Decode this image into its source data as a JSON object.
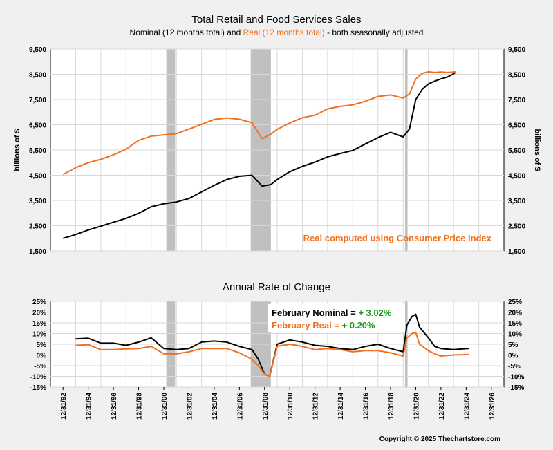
{
  "chart_data": [
    {
      "type": "line",
      "title": "Total Retail and Food Services Sales",
      "subtitle": {
        "part1": "Nominal (12 months total) and ",
        "part2": "Real (12 months total)",
        "part3": " - both seasonally adjusted"
      },
      "ylabel_left": "billions of $",
      "ylabel_right": "billions of $",
      "ylim": [
        1500,
        9500
      ],
      "yticks": [
        "9,500",
        "8,500",
        "7,500",
        "6,500",
        "5,500",
        "4,500",
        "3,500",
        "2,500",
        "1,500"
      ],
      "xlim": [
        1992,
        2028
      ],
      "annotation": "Real computed using Consumer Price Index",
      "recessions": [
        [
          2001.2,
          2001.9
        ],
        [
          2007.9,
          2009.5
        ],
        [
          2020.15,
          2020.35
        ]
      ],
      "series": [
        {
          "name": "Nominal",
          "color": "#000000",
          "x": [
            1993,
            1994,
            1995,
            1996,
            1997,
            1998,
            1999,
            2000,
            2001,
            2002,
            2003,
            2004,
            2005,
            2006,
            2007,
            2008,
            2008.8,
            2009.5,
            2010,
            2011,
            2012,
            2013,
            2014,
            2015,
            2016,
            2017,
            2018,
            2019,
            2020,
            2020.5,
            2021,
            2021.5,
            2022,
            2022.5,
            2023,
            2023.5,
            2024,
            2024.2
          ],
          "y": [
            2000,
            2150,
            2330,
            2480,
            2640,
            2790,
            2990,
            3250,
            3370,
            3440,
            3580,
            3840,
            4100,
            4330,
            4460,
            4500,
            4070,
            4130,
            4330,
            4640,
            4850,
            5020,
            5230,
            5360,
            5480,
            5740,
            5990,
            6200,
            6020,
            6330,
            7500,
            7900,
            8120,
            8230,
            8320,
            8390,
            8520,
            8590
          ]
        },
        {
          "name": "Real",
          "color": "#f07020",
          "x": [
            1993,
            1994,
            1995,
            1996,
            1997,
            1998,
            1999,
            2000,
            2001,
            2002,
            2003,
            2004,
            2005,
            2006,
            2007,
            2008,
            2008.8,
            2009.5,
            2010,
            2011,
            2012,
            2013,
            2014,
            2015,
            2016,
            2017,
            2018,
            2019,
            2020,
            2020.5,
            2021,
            2021.5,
            2022,
            2022.5,
            2023,
            2023.5,
            2024,
            2024.2
          ],
          "y": [
            4530,
            4800,
            5000,
            5130,
            5310,
            5530,
            5880,
            6050,
            6100,
            6150,
            6330,
            6520,
            6710,
            6770,
            6720,
            6580,
            5950,
            6130,
            6320,
            6570,
            6780,
            6880,
            7130,
            7230,
            7290,
            7430,
            7620,
            7680,
            7560,
            7720,
            8310,
            8530,
            8600,
            8570,
            8590,
            8570,
            8590,
            8600
          ]
        }
      ]
    },
    {
      "type": "line",
      "title": "Annual Rate of Change",
      "ylim": [
        -15,
        25
      ],
      "yticks": [
        "25%",
        "20%",
        "15%",
        "10%",
        "5%",
        "0%",
        "-5%",
        "-10%",
        "-15%"
      ],
      "xticks": [
        "12/31/92",
        "12/31/94",
        "12/31/96",
        "12/31/98",
        "12/31/00",
        "12/31/02",
        "12/31/04",
        "12/31/06",
        "12/31/08",
        "12/31/10",
        "12/31/12",
        "12/31/14",
        "12/31/16",
        "12/31/18",
        "12/31/20",
        "12/31/22",
        "12/31/24",
        "12/31/26"
      ],
      "annotation_nominal": "February Nominal = ",
      "annotation_nominal_value": "+ 3.02%",
      "annotation_real": "February Real = ",
      "annotation_real_value": "+ 0.20%",
      "series": [
        {
          "name": "Nominal",
          "color": "#000000",
          "x": [
            1994,
            1995,
            1996,
            1997,
            1998,
            1999,
            2000,
            2001,
            2002,
            2003,
            2004,
            2005,
            2006,
            2007,
            2008,
            2008.5,
            2009,
            2009.4,
            2010,
            2011,
            2012,
            2013,
            2014,
            2015,
            2016,
            2017,
            2018,
            2019,
            2020,
            2020.3,
            2020.7,
            2021,
            2021.3,
            2022,
            2022.5,
            2023,
            2024,
            2025.2
          ],
          "y": [
            7.5,
            7.8,
            5.5,
            5.5,
            4.5,
            6,
            8,
            3,
            2.5,
            3,
            6,
            6.5,
            6,
            4,
            2.5,
            -2,
            -9,
            -10,
            5,
            7,
            6,
            4.5,
            4,
            3,
            2.5,
            4,
            5,
            3,
            1.5,
            14,
            18,
            19,
            13,
            8,
            4,
            3,
            2.5,
            3.02
          ]
        },
        {
          "name": "Real",
          "color": "#f07020",
          "x": [
            1994,
            1995,
            1996,
            1997,
            1998,
            1999,
            2000,
            2001,
            2002,
            2003,
            2004,
            2005,
            2006,
            2007,
            2008,
            2008.5,
            2009,
            2009.4,
            2010,
            2011,
            2012,
            2013,
            2014,
            2015,
            2016,
            2017,
            2018,
            2019,
            2020,
            2020.3,
            2020.7,
            2021,
            2021.3,
            2022,
            2022.5,
            2023,
            2024,
            2025.2
          ],
          "y": [
            4.5,
            4.8,
            2.5,
            2.5,
            2.8,
            3,
            4,
            0.5,
            0.5,
            1.5,
            3,
            3,
            3,
            1,
            -2,
            -5,
            -9,
            -10,
            4,
            5,
            4,
            2.5,
            3,
            2.5,
            1.5,
            2,
            2,
            1,
            -0.5,
            8,
            10,
            10.5,
            5,
            2,
            0.5,
            -0.5,
            0,
            0.2
          ]
        }
      ]
    }
  ],
  "copyright": "Copyright © 2025 Thechartstore.com"
}
